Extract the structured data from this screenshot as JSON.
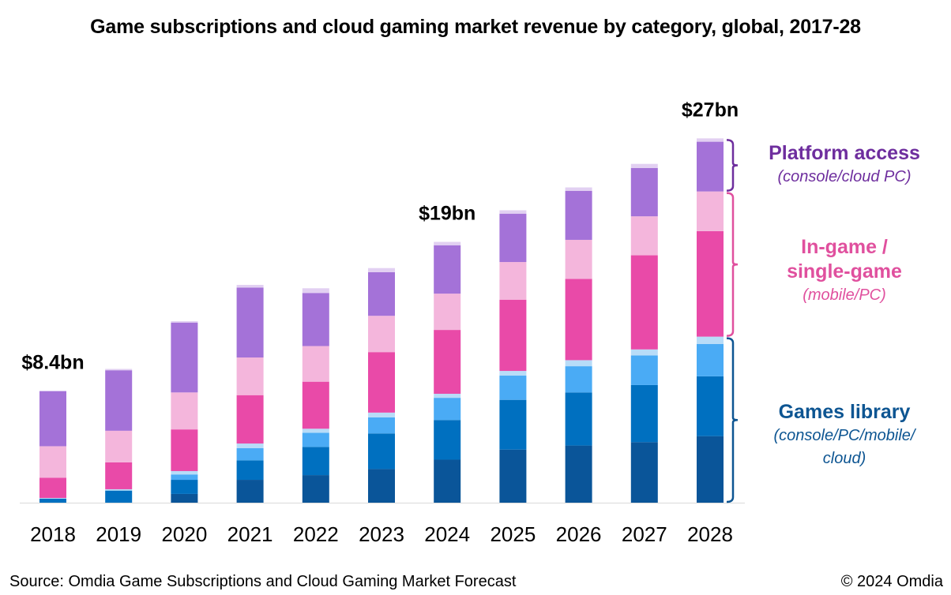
{
  "chart_data": {
    "type": "bar",
    "stacked": true,
    "title": "Game subscriptions and cloud gaming market revenue by category, global, 2017-28",
    "xlabel": "",
    "ylabel": "",
    "units": "US$ bn",
    "ylim": [
      0,
      28
    ],
    "grid": false,
    "categories": [
      "2018",
      "2019",
      "2020",
      "2021",
      "2022",
      "2023",
      "2024",
      "2025",
      "2026",
      "2027",
      "2028"
    ],
    "series": [
      {
        "name": "Games library segment 1",
        "group": "Games library",
        "color": "#0a5599",
        "values": [
          0.0,
          0.0,
          0.65,
          1.7,
          2.05,
          2.5,
          3.2,
          3.95,
          4.25,
          4.5,
          4.95
        ]
      },
      {
        "name": "Games library segment 2",
        "group": "Games library",
        "color": "#0070c0",
        "values": [
          0.3,
          0.9,
          1.05,
          1.45,
          2.1,
          2.65,
          2.95,
          3.7,
          3.95,
          4.25,
          4.45
        ]
      },
      {
        "name": "Games library segment 3",
        "group": "Games library",
        "color": "#4aabf5",
        "values": [
          0.0,
          0.0,
          0.4,
          0.9,
          1.05,
          1.2,
          1.65,
          1.8,
          1.95,
          2.2,
          2.4
        ]
      },
      {
        "name": "Games library segment 4",
        "group": "Games library",
        "color": "#b8dcf8",
        "values": [
          0.05,
          0.1,
          0.25,
          0.35,
          0.3,
          0.35,
          0.3,
          0.35,
          0.45,
          0.45,
          0.55
        ]
      },
      {
        "name": "In-game / single-game segment 1",
        "group": "In-game / single-game",
        "color": "#e94aa8",
        "values": [
          1.5,
          2.0,
          3.1,
          3.6,
          3.5,
          4.5,
          4.75,
          5.3,
          6.05,
          7.0,
          7.85
        ]
      },
      {
        "name": "In-game / single-game segment 2",
        "group": "In-game / single-game",
        "color": "#f4b6dc",
        "values": [
          2.35,
          2.35,
          2.75,
          2.8,
          2.65,
          2.7,
          2.7,
          2.8,
          2.9,
          2.9,
          2.95
        ]
      },
      {
        "name": "Platform access segment 1",
        "group": "Platform access",
        "color": "#a472d8",
        "values": [
          4.1,
          4.5,
          5.2,
          5.2,
          3.95,
          3.25,
          3.6,
          3.6,
          3.65,
          3.6,
          3.7
        ]
      },
      {
        "name": "Platform access segment 2",
        "group": "Platform access",
        "color": "#e2d0f2",
        "values": [
          0.0,
          0.1,
          0.1,
          0.2,
          0.35,
          0.3,
          0.25,
          0.25,
          0.25,
          0.3,
          0.25
        ]
      }
    ],
    "annotations": [
      {
        "category": "2018",
        "text": "$8.4bn"
      },
      {
        "category": "2024",
        "text": "$19bn"
      },
      {
        "category": "2028",
        "text": "$27bn"
      }
    ],
    "legend": {
      "placement": "right",
      "entries": [
        {
          "title": "Platform access",
          "subtitle": "(console/cloud PC)",
          "color": "#6e2e9e"
        },
        {
          "title": "In-game / single-game",
          "title_lines": [
            "In-game /",
            "single-game"
          ],
          "subtitle": "(mobile/PC)",
          "color": "#e0509e"
        },
        {
          "title": "Games library",
          "subtitle_lines": [
            "(console/PC/mobile/",
            "cloud)"
          ],
          "color": "#0d5592"
        }
      ]
    }
  },
  "source": "Source: Omdia Game Subscriptions and Cloud Gaming Market Forecast",
  "copyright": "© 2024 Omdia"
}
